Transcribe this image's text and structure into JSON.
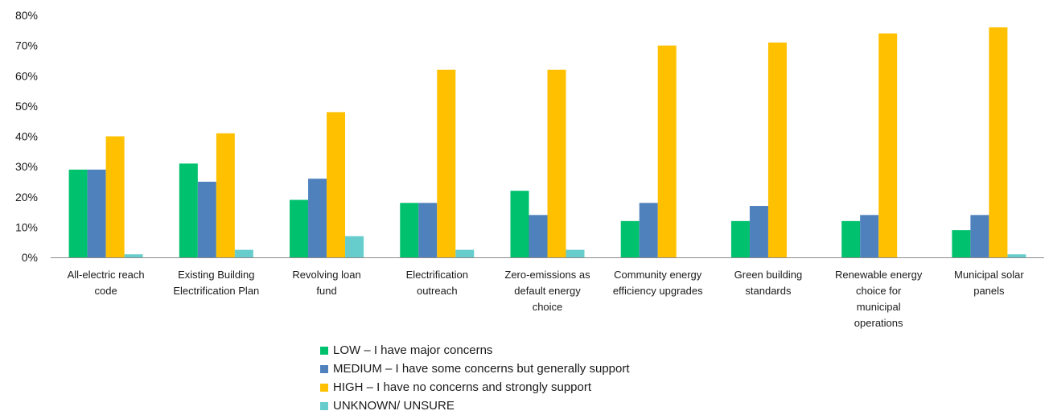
{
  "chart_data": {
    "type": "bar",
    "categories": [
      [
        "All-electric reach",
        "code"
      ],
      [
        "Existing Building",
        "Electrification Plan"
      ],
      [
        "Revolving loan",
        "fund"
      ],
      [
        "Electrification",
        "outreach"
      ],
      [
        "Zero-emissions as",
        "default energy",
        "choice"
      ],
      [
        "Community energy",
        "efficiency upgrades"
      ],
      [
        "Green building",
        "standards"
      ],
      [
        "Renewable energy",
        "choice for",
        "municipal",
        "operations"
      ],
      [
        "Municipal solar",
        "panels"
      ]
    ],
    "series": [
      {
        "name": "LOW –  I have major concerns",
        "color": "#00c16e",
        "values": [
          29,
          31,
          19,
          18,
          22,
          12,
          12,
          12,
          9
        ]
      },
      {
        "name": "MEDIUM –  I have some concerns but generally support",
        "color": "#4f81bd",
        "values": [
          29,
          25,
          26,
          18,
          14,
          18,
          17,
          14,
          14
        ]
      },
      {
        "name": "HIGH –  I have no concerns and strongly support",
        "color": "#ffc000",
        "values": [
          40,
          41,
          48,
          62,
          62,
          70,
          71,
          74,
          76
        ]
      },
      {
        "name": "UNKNOWN/ UNSURE",
        "color": "#66cccc",
        "values": [
          1,
          2.5,
          7,
          2.5,
          2.5,
          0,
          0,
          0,
          1
        ]
      }
    ],
    "ylim": [
      0,
      80
    ],
    "yticks": [
      "0%",
      "10%",
      "20%",
      "30%",
      "40%",
      "50%",
      "60%",
      "70%",
      "80%"
    ],
    "grid": false,
    "legend_position": "bottom"
  }
}
